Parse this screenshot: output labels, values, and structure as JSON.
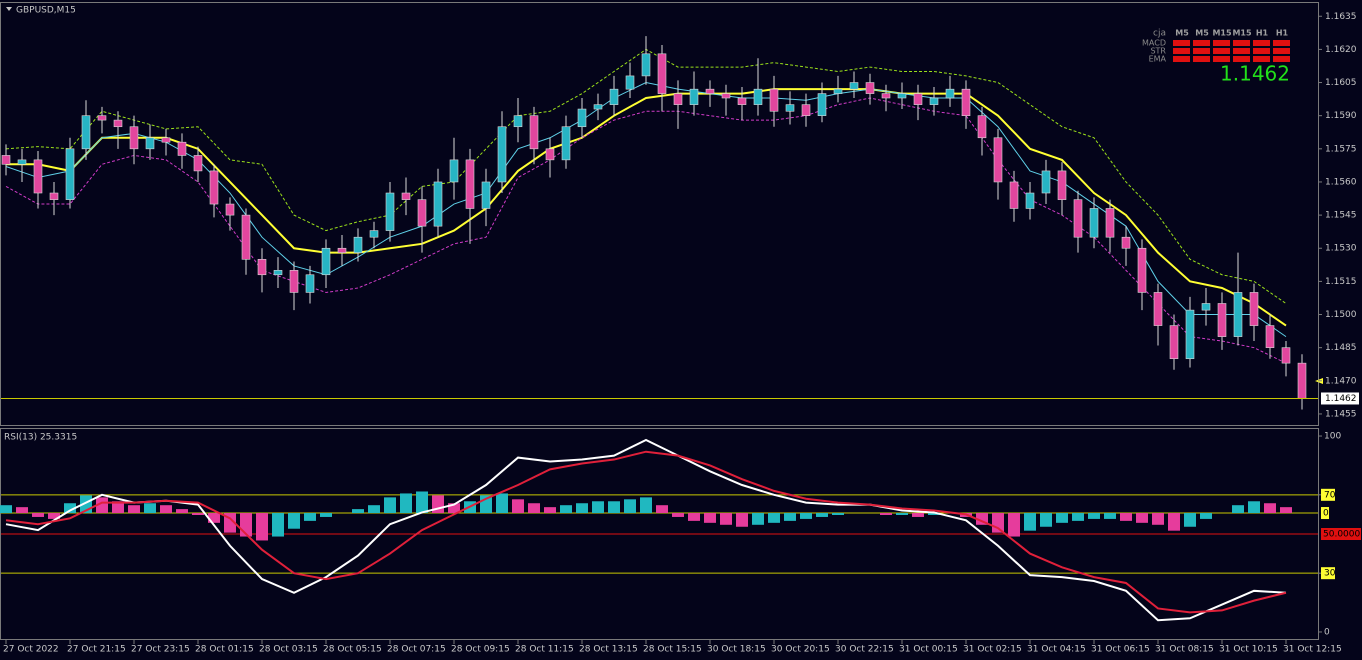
{
  "chart_data": [
    {
      "type": "candlestick",
      "title": "GBPUSD,M15",
      "categories": [
        "27 Oct 2022",
        null,
        null,
        null,
        "27 Oct 21:15",
        null,
        null,
        null,
        "27 Oct 23:15",
        null,
        null,
        null,
        "28 Oct 01:15",
        null,
        null,
        null,
        "28 Oct 03:15",
        null,
        null,
        null,
        "28 Oct 05:15",
        null,
        null,
        null,
        "28 Oct 07:15",
        null,
        null,
        null,
        "28 Oct 09:15",
        null,
        null,
        null,
        "28 Oct 11:15",
        null,
        null,
        null,
        "28 Oct 13:15",
        null,
        null,
        null,
        "28 Oct 15:15",
        null,
        null,
        null,
        "30 Oct 18:15",
        null,
        null,
        null,
        "30 Oct 20:15",
        null,
        null,
        null,
        "30 Oct 22:15",
        null,
        null,
        null,
        "31 Oct 00:15",
        null,
        null,
        null,
        "31 Oct 02:15",
        null,
        null,
        null,
        "31 Oct 04:15",
        null,
        null,
        null,
        "31 Oct 06:15",
        null,
        null,
        null,
        "31 Oct 08:15",
        null,
        null,
        null,
        "31 Oct 10:15",
        null,
        null,
        null,
        "31 Oct 12:15",
        null
      ],
      "open": [
        1.1572,
        1.1568,
        1.157,
        1.1555,
        1.1552,
        1.1575,
        1.159,
        1.1588,
        1.1585,
        1.1575,
        1.158,
        1.1578,
        1.1572,
        1.1565,
        1.155,
        1.1545,
        1.1525,
        1.1518,
        1.152,
        1.151,
        1.1518,
        1.153,
        1.1528,
        1.1535,
        1.1538,
        1.1555,
        1.1552,
        1.154,
        1.156,
        1.157,
        1.1548,
        1.156,
        1.1585,
        1.159,
        1.1575,
        1.157,
        1.1585,
        1.1593,
        1.1595,
        1.1602,
        1.1608,
        1.1618,
        1.16,
        1.1595,
        1.1602,
        1.16,
        1.1598,
        1.1595,
        1.1602,
        1.1592,
        1.1595,
        1.159,
        1.16,
        1.1602,
        1.1605,
        1.16,
        1.1598,
        1.16,
        1.1595,
        1.1598,
        1.1602,
        1.159,
        1.158,
        1.156,
        1.1548,
        1.1555,
        1.1565,
        1.1552,
        1.1535,
        1.1548,
        1.1535,
        1.153,
        1.151,
        1.1495,
        1.148,
        1.1502,
        1.1505,
        1.149,
        1.151,
        1.1495,
        1.1485,
        1.1478
      ],
      "high": [
        1.1577,
        1.1575,
        1.1574,
        1.156,
        1.158,
        1.1597,
        1.1594,
        1.1592,
        1.159,
        1.1586,
        1.1584,
        1.1582,
        1.1576,
        1.1568,
        1.1553,
        1.1548,
        1.153,
        1.1526,
        1.1524,
        1.1522,
        1.1534,
        1.1536,
        1.1539,
        1.1542,
        1.156,
        1.1562,
        1.1558,
        1.1566,
        1.158,
        1.1575,
        1.1566,
        1.1592,
        1.1598,
        1.1594,
        1.158,
        1.159,
        1.1598,
        1.16,
        1.1608,
        1.1614,
        1.1626,
        1.1622,
        1.1606,
        1.161,
        1.1606,
        1.1604,
        1.1603,
        1.1616,
        1.1608,
        1.1601,
        1.16,
        1.1605,
        1.1608,
        1.161,
        1.1609,
        1.1604,
        1.1605,
        1.1604,
        1.1603,
        1.1608,
        1.1606,
        1.1594,
        1.1584,
        1.1565,
        1.156,
        1.157,
        1.1569,
        1.1556,
        1.1553,
        1.1552,
        1.154,
        1.1534,
        1.1514,
        1.15,
        1.1508,
        1.1512,
        1.151,
        1.1528,
        1.1514,
        1.15,
        1.1488,
        1.1482
      ],
      "low": [
        1.1563,
        1.156,
        1.1548,
        1.1545,
        1.1548,
        1.157,
        1.1582,
        1.1575,
        1.1568,
        1.157,
        1.1572,
        1.1566,
        1.156,
        1.1544,
        1.1538,
        1.1518,
        1.151,
        1.1512,
        1.1502,
        1.1505,
        1.1512,
        1.1522,
        1.1524,
        1.153,
        1.1533,
        1.1545,
        1.1528,
        1.1535,
        1.1552,
        1.1532,
        1.154,
        1.1555,
        1.1578,
        1.1568,
        1.1562,
        1.1566,
        1.158,
        1.1588,
        1.159,
        1.1598,
        1.1604,
        1.1592,
        1.1584,
        1.159,
        1.1594,
        1.159,
        1.1588,
        1.159,
        1.1585,
        1.1586,
        1.1585,
        1.1587,
        1.1596,
        1.1598,
        1.1595,
        1.1592,
        1.1593,
        1.1588,
        1.159,
        1.1594,
        1.1584,
        1.1572,
        1.1552,
        1.1542,
        1.1543,
        1.155,
        1.1545,
        1.1528,
        1.153,
        1.1528,
        1.1522,
        1.1502,
        1.1486,
        1.1475,
        1.1476,
        1.1495,
        1.1484,
        1.1486,
        1.1488,
        1.148,
        1.1472,
        1.1457
      ],
      "close": [
        1.1568,
        1.157,
        1.1555,
        1.1552,
        1.1575,
        1.159,
        1.1588,
        1.1585,
        1.1575,
        1.158,
        1.1578,
        1.1572,
        1.1565,
        1.155,
        1.1545,
        1.1525,
        1.1518,
        1.152,
        1.151,
        1.1518,
        1.153,
        1.1528,
        1.1535,
        1.1538,
        1.1555,
        1.1552,
        1.154,
        1.156,
        1.157,
        1.1548,
        1.156,
        1.1585,
        1.159,
        1.1575,
        1.157,
        1.1585,
        1.1593,
        1.1595,
        1.1602,
        1.1608,
        1.1618,
        1.16,
        1.1595,
        1.1602,
        1.16,
        1.1598,
        1.1595,
        1.1602,
        1.1592,
        1.1595,
        1.159,
        1.16,
        1.1602,
        1.1605,
        1.16,
        1.1598,
        1.16,
        1.1595,
        1.1598,
        1.1602,
        1.159,
        1.158,
        1.156,
        1.1548,
        1.1555,
        1.1565,
        1.1552,
        1.1535,
        1.1548,
        1.1535,
        1.153,
        1.151,
        1.1495,
        1.148,
        1.1502,
        1.1505,
        1.149,
        1.151,
        1.1495,
        1.1485,
        1.1478,
        1.1462
      ],
      "up_color": "#27b4c4",
      "down_color": "#e2469e",
      "x": [
        0,
        2,
        4,
        6,
        8,
        10,
        12,
        14,
        16,
        18,
        20,
        22,
        24,
        26,
        28,
        30,
        32,
        34,
        36,
        38,
        40,
        42,
        44,
        46,
        48,
        50,
        52,
        54,
        56,
        58,
        60,
        62,
        64,
        66,
        68,
        70,
        72,
        74,
        76,
        78,
        80
      ],
      "lines": [
        {
          "color": "#ffff33",
          "style": "solid",
          "values": [
            1.1568,
            1.1568,
            1.1565,
            1.158,
            1.158,
            1.158,
            1.1575,
            1.156,
            1.1545,
            1.153,
            1.1528,
            1.1528,
            1.153,
            1.1532,
            1.1538,
            1.1548,
            1.1565,
            1.1575,
            1.158,
            1.159,
            1.1598,
            1.16,
            1.16,
            1.16,
            1.1602,
            1.1602,
            1.1602,
            1.1602,
            1.16,
            1.16,
            1.16,
            1.159,
            1.1575,
            1.157,
            1.1555,
            1.1545,
            1.1528,
            1.1515,
            1.1512,
            1.1505,
            1.1495
          ]
        },
        {
          "color": "#5fd0e8",
          "style": "thin",
          "values": [
            1.1567,
            1.1562,
            1.1565,
            1.158,
            1.1582,
            1.1578,
            1.157,
            1.1555,
            1.1535,
            1.1522,
            1.1518,
            1.1526,
            1.1535,
            1.154,
            1.155,
            1.1555,
            1.1575,
            1.158,
            1.1588,
            1.1598,
            1.1605,
            1.1602,
            1.16,
            1.1598,
            1.1598,
            1.1597,
            1.16,
            1.1602,
            1.16,
            1.1598,
            1.1598,
            1.1585,
            1.1565,
            1.156,
            1.155,
            1.154,
            1.1515,
            1.15,
            1.15,
            1.15,
            1.149
          ]
        },
        {
          "color": "#9be01a",
          "style": "dashed",
          "values": [
            1.1575,
            1.1576,
            1.1575,
            1.1592,
            1.1588,
            1.1584,
            1.1585,
            1.157,
            1.1568,
            1.1545,
            1.1538,
            1.1542,
            1.1545,
            1.1558,
            1.156,
            1.1575,
            1.159,
            1.1592,
            1.16,
            1.161,
            1.162,
            1.1612,
            1.1612,
            1.1612,
            1.1614,
            1.1612,
            1.161,
            1.1612,
            1.161,
            1.161,
            1.1608,
            1.1605,
            1.1595,
            1.1585,
            1.158,
            1.156,
            1.1545,
            1.1525,
            1.1518,
            1.1515,
            1.1505
          ]
        },
        {
          "color": "#d03cc8",
          "style": "dashed",
          "values": [
            1.1558,
            1.155,
            1.155,
            1.1568,
            1.1572,
            1.157,
            1.156,
            1.154,
            1.152,
            1.1515,
            1.151,
            1.1512,
            1.1518,
            1.1525,
            1.1532,
            1.1535,
            1.1562,
            1.157,
            1.158,
            1.1588,
            1.1592,
            1.1592,
            1.159,
            1.1588,
            1.1588,
            1.159,
            1.1595,
            1.1598,
            1.1595,
            1.1592,
            1.159,
            1.157,
            1.1552,
            1.1545,
            1.1535,
            1.152,
            1.1505,
            1.149,
            1.1488,
            1.1485,
            1.1478
          ]
        }
      ],
      "ylim": [
        1.145,
        1.1641
      ],
      "yticks": [
        1.1635,
        {
          "value": 1.162,
          "label": "1.1620"
        },
        1.1605,
        {
          "value": 1.159,
          "label": "1.1590"
        },
        1.1575,
        {
          "value": 1.156,
          "label": "1.1560"
        },
        1.1545,
        {
          "value": 1.153,
          "label": "1.1530"
        },
        1.1515,
        {
          "value": 1.15,
          "label": "1.1500"
        },
        1.1485,
        {
          "value": 1.147,
          "label": "1.1470"
        },
        1.1455
      ],
      "last_price": 1.1462,
      "signal_panel": {
        "label": "cja",
        "timeframes": [
          "M5",
          "M5",
          "M15",
          "M15",
          "H1",
          "H1"
        ],
        "rows": [
          "MACD",
          "STR",
          "EMA"
        ],
        "signal_color": "#e01010",
        "price_color": "#22e01a"
      }
    },
    {
      "type": "rsi",
      "title": "RSI(13) 25.3315",
      "x": [
        0,
        2,
        4,
        6,
        8,
        10,
        12,
        14,
        16,
        18,
        20,
        22,
        24,
        26,
        28,
        30,
        32,
        34,
        36,
        38,
        40,
        42,
        44,
        46,
        48,
        50,
        52,
        54,
        56,
        58,
        60,
        62,
        64,
        66,
        68,
        70,
        72,
        74,
        76,
        78,
        80
      ],
      "series": [
        {
          "color": "#ffffff",
          "values": [
            55,
            52,
            62,
            70,
            66,
            67,
            65,
            44,
            27,
            20,
            28,
            39,
            55,
            61,
            65,
            75,
            89,
            87,
            88,
            90,
            98,
            90,
            82,
            75,
            70,
            66,
            65,
            65,
            62,
            61,
            57,
            44,
            29,
            28,
            26,
            21,
            6,
            7,
            14,
            21,
            20
          ]
        },
        {
          "color": "#e0203a",
          "values": [
            57,
            55,
            58,
            66,
            66,
            67,
            66,
            58,
            42,
            30,
            27,
            30,
            40,
            52,
            60,
            68,
            75,
            83,
            86,
            88,
            92,
            90,
            85,
            78,
            72,
            68,
            66,
            65,
            63,
            62,
            60,
            53,
            40,
            33,
            28,
            25,
            12,
            10,
            11,
            16,
            20
          ]
        }
      ],
      "histogram": [
        4,
        3,
        -2,
        -3,
        5,
        9,
        8,
        6,
        4,
        5,
        4,
        2,
        -1,
        -5,
        -10,
        -12,
        -14,
        -12,
        -8,
        -4,
        -2,
        0,
        2,
        4,
        8,
        10,
        11,
        9,
        5,
        6,
        9,
        10,
        7,
        5,
        3,
        4,
        5,
        6,
        6,
        7,
        8,
        4,
        -2,
        -4,
        -5,
        -6,
        -7,
        -6,
        -5,
        -4,
        -3,
        -2,
        -1,
        0,
        0,
        -1,
        -1,
        -2,
        -1,
        0,
        -2,
        -6,
        -10,
        -12,
        -9,
        -7,
        -5,
        -4,
        -3,
        -3,
        -4,
        -5,
        -6,
        -9,
        -7,
        -3,
        0,
        4,
        6,
        5,
        3,
        0
      ],
      "hist_colors": [
        "#20b8c0",
        "#e63c9c"
      ],
      "hist_zero": {
        "value": 60.7,
        "label": "0"
      },
      "level": {
        "value": 50,
        "label": "50.0000"
      },
      "ylim": [
        -4.1,
        104.1
      ],
      "yticks": [
        100,
        70,
        30,
        0
      ],
      "level_lines": [
        70,
        30
      ]
    }
  ]
}
